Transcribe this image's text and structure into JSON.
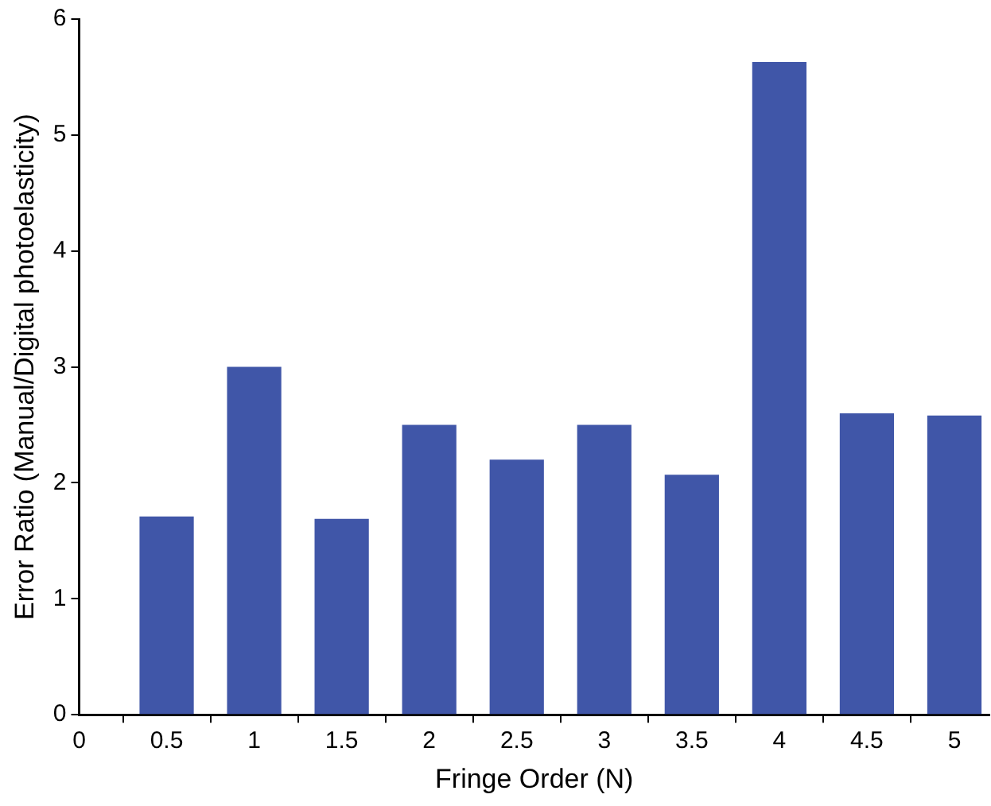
{
  "chart_data": {
    "type": "bar",
    "xlabel": "Fringe Order (N)",
    "ylabel": "Error Ratio (Manual/Digital photoelasticity)",
    "x": [
      0.5,
      1,
      1.5,
      2,
      2.5,
      3,
      3.5,
      4,
      4.5,
      5
    ],
    "values": [
      1.71,
      3.0,
      1.69,
      2.5,
      2.2,
      2.5,
      2.07,
      5.63,
      2.6,
      2.58
    ],
    "color": "#4056a8",
    "xlim": [
      0,
      5.2
    ],
    "xticks": [
      0,
      0.5,
      1,
      1.5,
      2,
      2.5,
      3,
      3.5,
      4,
      4.5,
      5
    ],
    "ylim": [
      0,
      6
    ],
    "yticks": [
      0,
      1,
      2,
      3,
      4,
      5,
      6
    ],
    "grid": false,
    "legend": false
  }
}
